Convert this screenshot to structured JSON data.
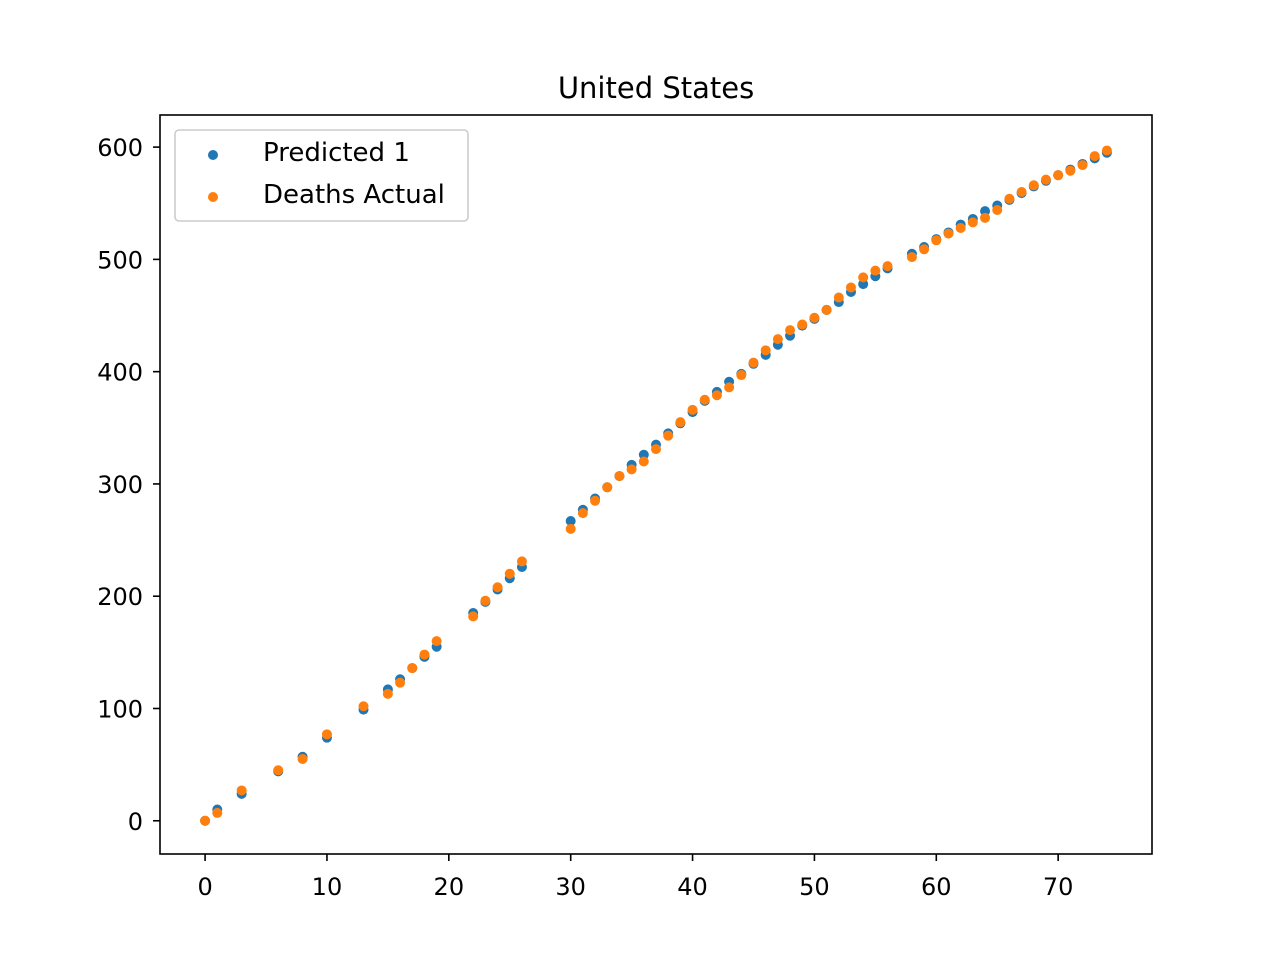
{
  "chart_data": {
    "type": "scatter",
    "title": "United States",
    "xlabel": "",
    "ylabel": "",
    "xlim": [
      -3.7,
      77.7
    ],
    "ylim": [
      -29.6,
      628.6
    ],
    "x_ticks": [
      0,
      10,
      20,
      30,
      40,
      50,
      60,
      70
    ],
    "y_ticks": [
      0,
      100,
      200,
      300,
      400,
      500,
      600
    ],
    "grid": false,
    "legend_position": "top-left",
    "x": [
      0,
      1,
      3,
      6,
      8,
      10,
      13,
      15,
      16,
      17,
      18,
      19,
      22,
      23,
      24,
      25,
      26,
      30,
      31,
      32,
      33,
      34,
      35,
      36,
      37,
      38,
      39,
      40,
      41,
      42,
      43,
      44,
      45,
      46,
      47,
      48,
      49,
      50,
      51,
      52,
      53,
      54,
      55,
      56,
      58,
      59,
      60,
      61,
      62,
      63,
      64,
      65,
      66,
      67,
      68,
      69,
      70,
      71,
      72,
      73,
      74
    ],
    "series": [
      {
        "name": "Predicted 1",
        "color": "#1f77b4",
        "values": [
          0,
          10,
          24,
          44,
          57,
          74,
          99,
          117,
          126,
          136,
          146,
          155,
          185,
          195,
          206,
          216,
          226,
          267,
          277,
          287,
          297,
          307,
          317,
          326,
          335,
          345,
          354,
          364,
          374,
          382,
          391,
          398,
          407,
          415,
          424,
          432,
          441,
          447,
          455,
          462,
          471,
          478,
          485,
          492,
          505,
          511,
          518,
          524,
          531,
          536,
          543,
          548,
          553,
          559,
          565,
          570,
          575,
          580,
          585,
          590,
          595
        ]
      },
      {
        "name": "Deaths Actual",
        "color": "#ff7f0e",
        "values": [
          0,
          7,
          27,
          45,
          55,
          77,
          102,
          113,
          123,
          136,
          148,
          160,
          182,
          196,
          208,
          220,
          231,
          260,
          274,
          285,
          297,
          307,
          313,
          320,
          331,
          343,
          355,
          366,
          375,
          379,
          386,
          397,
          408,
          419,
          429,
          437,
          442,
          448,
          455,
          466,
          475,
          484,
          490,
          494,
          502,
          509,
          517,
          523,
          528,
          533,
          537,
          544,
          554,
          560,
          566,
          571,
          575,
          579,
          584,
          592,
          597
        ]
      }
    ]
  }
}
